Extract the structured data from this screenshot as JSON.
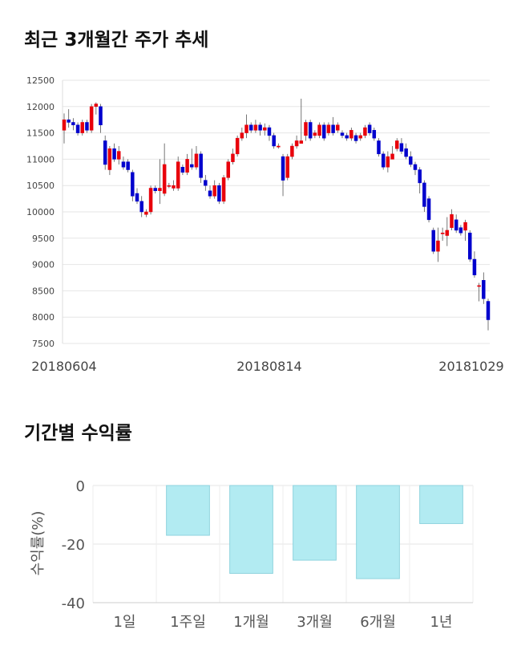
{
  "sections": {
    "price_title": "최근 3개월간 주가 추세",
    "return_title": "기간별 수익률"
  },
  "colors": {
    "up": "#e8000b",
    "down": "#0000cd",
    "bar_fill": "#b2ebf2",
    "bar_stroke": "#8fd3de",
    "grid": "#e6e6e6"
  },
  "chart_data": [
    {
      "type": "candlestick",
      "ylim": [
        7500,
        12500
      ],
      "yticks": [
        7500,
        8000,
        8500,
        9000,
        9500,
        10000,
        10500,
        11000,
        11500,
        12000,
        12500
      ],
      "x_tick_labels": [
        "20180604",
        "20180814",
        "20181029"
      ],
      "x_tick_index": [
        0,
        45,
        90
      ],
      "candles": [
        [
          11550,
          11750,
          11870,
          11300
        ],
        [
          11750,
          11700,
          11950,
          11600
        ],
        [
          11700,
          11650,
          11780,
          11550
        ],
        [
          11650,
          11500,
          11700,
          11450
        ],
        [
          11500,
          11700,
          11750,
          11450
        ],
        [
          11700,
          11550,
          11750,
          11500
        ],
        [
          11550,
          12000,
          12050,
          11500
        ],
        [
          12000,
          12050,
          12080,
          11850
        ],
        [
          12000,
          11650,
          12050,
          11500
        ],
        [
          11350,
          10900,
          11450,
          10800
        ],
        [
          10800,
          11200,
          11250,
          10700
        ],
        [
          11200,
          11000,
          11300,
          10950
        ],
        [
          11000,
          11150,
          11250,
          10900
        ],
        [
          10950,
          10850,
          11050,
          10800
        ],
        [
          10950,
          10800,
          11000,
          10750
        ],
        [
          10750,
          10300,
          10800,
          10200
        ],
        [
          10350,
          10200,
          10450,
          10150
        ],
        [
          10200,
          10000,
          10300,
          9900
        ],
        [
          9950,
          10000,
          10050,
          9900
        ],
        [
          10000,
          10450,
          10500,
          9950
        ],
        [
          10450,
          10400,
          10500,
          10350
        ],
        [
          10400,
          10450,
          11000,
          10150
        ],
        [
          10350,
          10900,
          11300,
          10300
        ],
        [
          10500,
          10500,
          10550,
          10450
        ],
        [
          10450,
          10500,
          10600,
          10400
        ],
        [
          10450,
          10950,
          11050,
          10400
        ],
        [
          10850,
          10750,
          10900,
          10700
        ],
        [
          10750,
          11000,
          11100,
          10700
        ],
        [
          10900,
          10850,
          11200,
          10800
        ],
        [
          10850,
          11100,
          11250,
          10800
        ],
        [
          11100,
          10650,
          11150,
          10550
        ],
        [
          10600,
          10500,
          10700,
          10400
        ],
        [
          10400,
          10300,
          10500,
          10250
        ],
        [
          10300,
          10500,
          10600,
          10250
        ],
        [
          10500,
          10200,
          10550,
          10150
        ],
        [
          10200,
          10650,
          10700,
          10150
        ],
        [
          10650,
          10950,
          11000,
          10600
        ],
        [
          10950,
          11100,
          11200,
          10900
        ],
        [
          11100,
          11400,
          11450,
          11050
        ],
        [
          11400,
          11500,
          11600,
          11350
        ],
        [
          11500,
          11650,
          11850,
          11400
        ],
        [
          11650,
          11550,
          11700,
          11500
        ],
        [
          11550,
          11650,
          11750,
          11500
        ],
        [
          11650,
          11550,
          11700,
          11450
        ],
        [
          11550,
          11600,
          11680,
          11450
        ],
        [
          11600,
          11450,
          11650,
          11350
        ],
        [
          11450,
          11250,
          11500,
          11200
        ],
        [
          11250,
          11250,
          11300,
          11200
        ],
        [
          11050,
          10600,
          11100,
          10300
        ],
        [
          10650,
          11050,
          11100,
          10600
        ],
        [
          11050,
          11250,
          11300,
          11000
        ],
        [
          11250,
          11350,
          11450,
          11200
        ],
        [
          11300,
          11350,
          12150,
          11300
        ],
        [
          11450,
          11700,
          11750,
          11350
        ],
        [
          11700,
          11400,
          11750,
          11350
        ],
        [
          11450,
          11500,
          11550,
          11400
        ],
        [
          11450,
          11650,
          11700,
          11400
        ],
        [
          11650,
          11400,
          11700,
          11350
        ],
        [
          11500,
          11650,
          11700,
          11450
        ],
        [
          11650,
          11500,
          11800,
          11450
        ],
        [
          11550,
          11650,
          11700,
          11500
        ],
        [
          11500,
          11450,
          11550,
          11400
        ],
        [
          11450,
          11400,
          11500,
          11350
        ],
        [
          11400,
          11550,
          11600,
          11350
        ],
        [
          11450,
          11350,
          11500,
          11300
        ],
        [
          11400,
          11450,
          11500,
          11350
        ],
        [
          11450,
          11600,
          11650,
          11400
        ],
        [
          11650,
          11500,
          11700,
          11450
        ],
        [
          11550,
          11400,
          11600,
          11350
        ],
        [
          11350,
          11100,
          11400,
          11050
        ],
        [
          11100,
          10850,
          11150,
          10800
        ],
        [
          10850,
          11050,
          11150,
          10750
        ],
        [
          11000,
          11100,
          11250,
          11000
        ],
        [
          11200,
          11350,
          11400,
          11150
        ],
        [
          11300,
          11150,
          11400,
          11100
        ],
        [
          11200,
          11050,
          11300,
          11000
        ],
        [
          11050,
          10900,
          11150,
          10850
        ],
        [
          10900,
          10800,
          10950,
          10700
        ],
        [
          10800,
          10550,
          10850,
          10350
        ],
        [
          10550,
          10100,
          10600,
          10000
        ],
        [
          10250,
          9850,
          10300,
          9800
        ],
        [
          9650,
          9250,
          9700,
          9200
        ],
        [
          9250,
          9450,
          9700,
          9050
        ],
        [
          9600,
          9600,
          9700,
          9450
        ],
        [
          9550,
          9650,
          9900,
          9350
        ],
        [
          9700,
          9950,
          10050,
          9650
        ],
        [
          9850,
          9650,
          9950,
          9600
        ],
        [
          9700,
          9600,
          9750,
          9550
        ],
        [
          9650,
          9800,
          9850,
          9450
        ],
        [
          9600,
          9100,
          9650,
          9050
        ],
        [
          9100,
          8800,
          9250,
          8750
        ],
        [
          8600,
          8600,
          8650,
          8300
        ],
        [
          8700,
          8350,
          8850,
          8250
        ],
        [
          8300,
          7950,
          8350,
          7750
        ]
      ]
    },
    {
      "type": "bar",
      "categories": [
        "1일",
        "1주일",
        "1개월",
        "3개월",
        "6개월",
        "1년"
      ],
      "values": [
        0,
        -17,
        -30,
        -25.5,
        -31.8,
        -13
      ],
      "ylabel": "수익률(%)",
      "ylim": [
        -40,
        0
      ],
      "yticks": [
        0,
        -20,
        -40
      ]
    }
  ]
}
